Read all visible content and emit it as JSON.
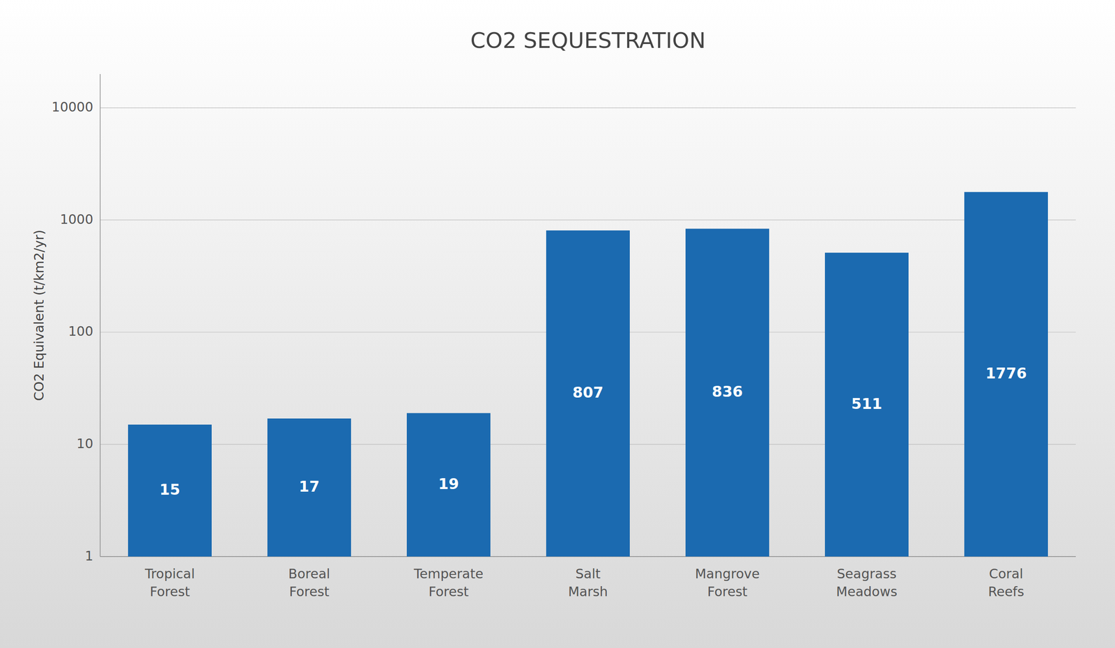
{
  "chart_data": {
    "type": "bar",
    "title": "CO2 SEQUESTRATION",
    "ylabel": "CO2 Equivalent (t/km2/yr)",
    "categories": [
      "Tropical\nForest",
      "Boreal\nForest",
      "Temperate\nForest",
      "Salt\nMarsh",
      "Mangrove\nForest",
      "Seagrass\nMeadows",
      "Coral\nReefs"
    ],
    "values": [
      15,
      17,
      19,
      807,
      836,
      511,
      1776
    ],
    "color": "#1b6ab0",
    "ylim": [
      1,
      20000
    ],
    "yticks": [
      1,
      10,
      100,
      1000,
      10000
    ],
    "log": "y",
    "grid": true,
    "data_labels": true
  }
}
